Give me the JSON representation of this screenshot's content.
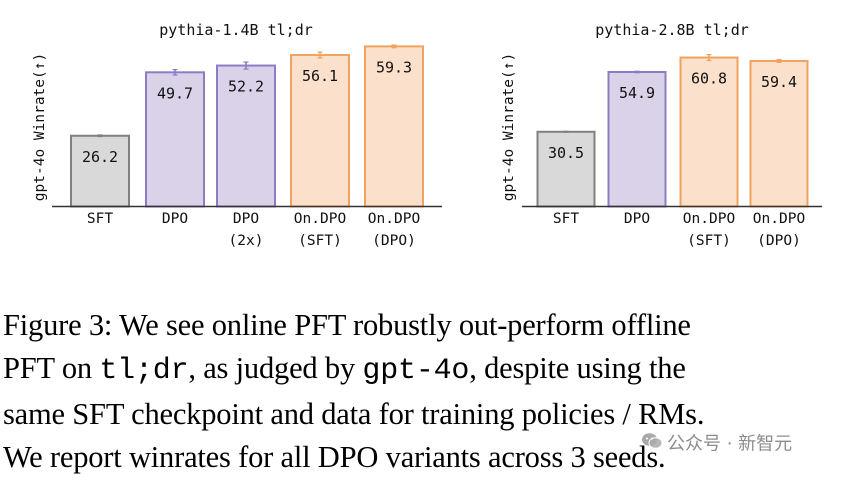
{
  "colors": {
    "sft_fill": "#d9d9d9",
    "sft_edge": "#808080",
    "dpo_fill": "#d9d2e9",
    "dpo_edge": "#8e7cc3",
    "online_fill": "#fbe1cc",
    "online_edge": "#f0a35e",
    "axis": "#333333"
  },
  "chart_data": [
    {
      "type": "bar",
      "title": "pythia-1.4B tl;dr",
      "ylabel": "gpt-4o Winrate(↑)",
      "xlabel": "",
      "ylim": [
        0,
        60
      ],
      "categories": [
        {
          "lines": [
            "SFT"
          ],
          "group": "sft"
        },
        {
          "lines": [
            "DPO"
          ],
          "group": "dpo"
        },
        {
          "lines": [
            "DPO",
            "(2x)"
          ],
          "group": "dpo"
        },
        {
          "lines": [
            "On.DPO",
            "(SFT)"
          ],
          "group": "online"
        },
        {
          "lines": [
            "On.DPO",
            "(DPO)"
          ],
          "group": "online"
        }
      ],
      "values": [
        26.2,
        49.7,
        52.2,
        56.1,
        59.3
      ],
      "value_labels": [
        "26.2",
        "49.7",
        "52.2",
        "56.1",
        "59.3"
      ],
      "errors": [
        0.3,
        1.0,
        1.3,
        1.1,
        0.5
      ]
    },
    {
      "type": "bar",
      "title": "pythia-2.8B tl;dr",
      "ylabel": "gpt-4o Winrate(↑)",
      "xlabel": "",
      "ylim": [
        0,
        60
      ],
      "categories": [
        {
          "lines": [
            "SFT"
          ],
          "group": "sft"
        },
        {
          "lines": [
            "DPO"
          ],
          "group": "dpo"
        },
        {
          "lines": [
            "On.DPO",
            "(SFT)"
          ],
          "group": "online"
        },
        {
          "lines": [
            "On.DPO",
            "(DPO)"
          ],
          "group": "online"
        }
      ],
      "values": [
        30.5,
        54.9,
        60.8,
        59.4
      ],
      "value_labels": [
        "30.5",
        "54.9",
        "60.8",
        "59.4"
      ],
      "errors": [
        0.2,
        0.3,
        1.2,
        0.6
      ]
    }
  ],
  "caption": {
    "line1": "Figure 3: We see online PFT robustly out-perform offline",
    "line2_a": "PFT on ",
    "line2_code1": "tl;dr",
    "line2_b": ", as judged by ",
    "line2_code2": "gpt-4o",
    "line2_c": ", despite using the",
    "line3": "same SFT checkpoint and data for training policies / RMs.",
    "line4": "We report winrates for all DPO variants across 3 seeds."
  },
  "watermark": {
    "text": "公众号 · 新智元",
    "icon": "wechat-icon"
  }
}
